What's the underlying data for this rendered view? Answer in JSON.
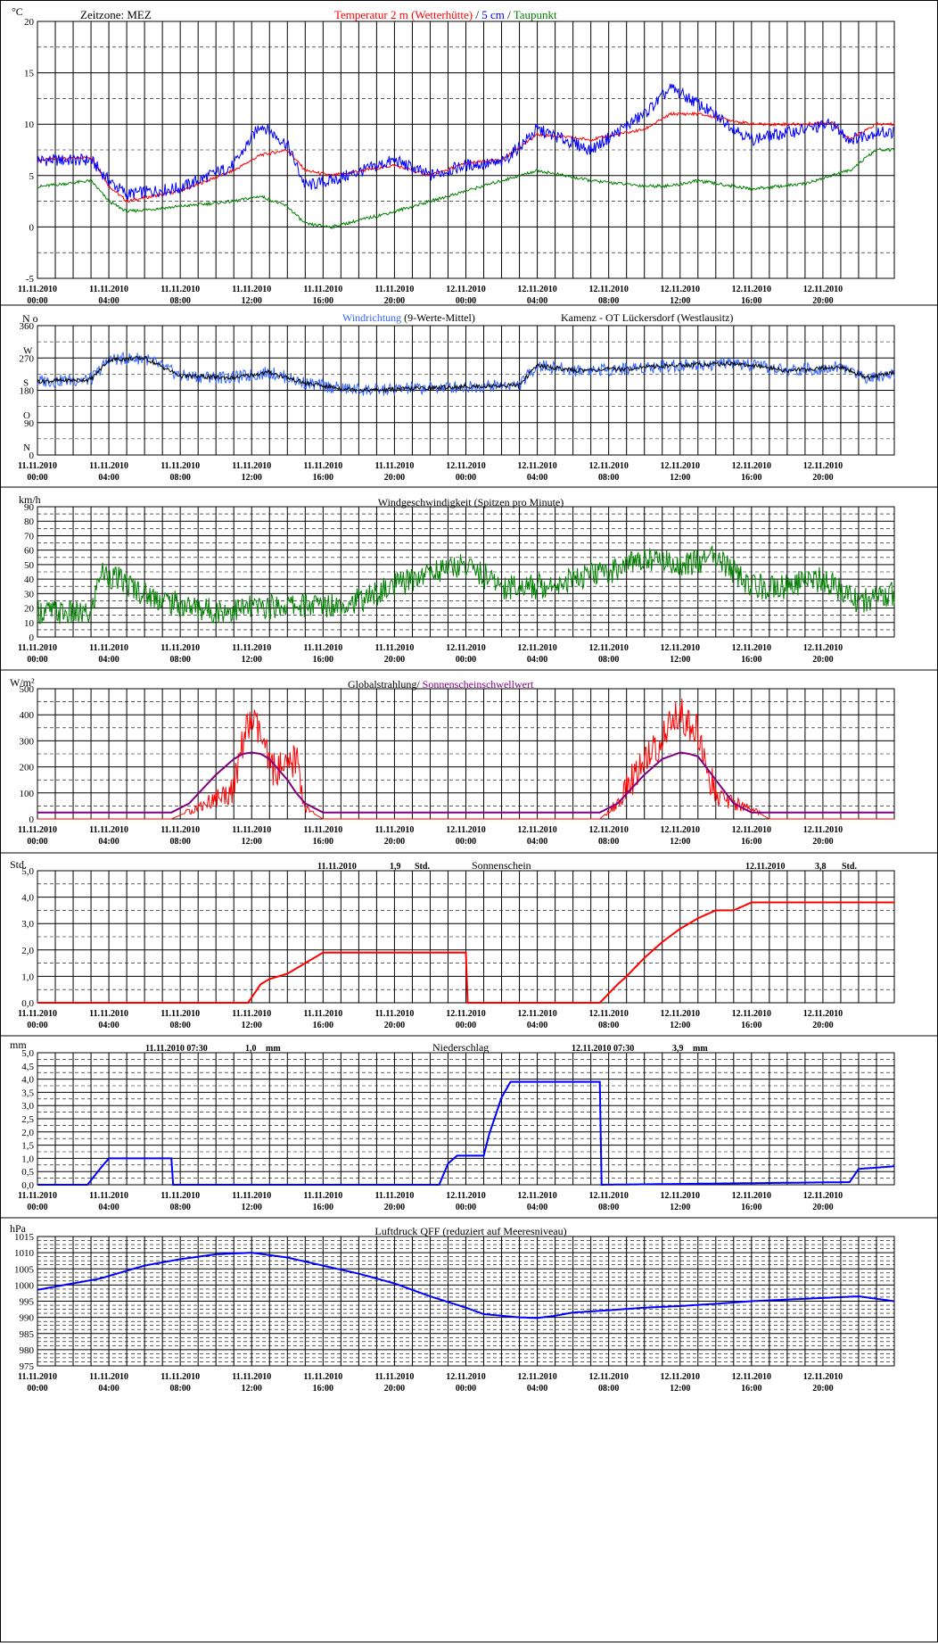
{
  "x_axis": {
    "dates": [
      "11.11.2010",
      "11.11.2010",
      "11.11.2010",
      "11.11.2010",
      "11.11.2010",
      "11.11.2010",
      "12.11.2010",
      "12.11.2010",
      "12.11.2010",
      "12.11.2010",
      "12.11.2010",
      "12.11.2010"
    ],
    "times": [
      "00:00",
      "04:00",
      "08:00",
      "12:00",
      "16:00",
      "20:00",
      "00:00",
      "04:00",
      "08:00",
      "12:00",
      "16:00",
      "20:00"
    ]
  },
  "panels": {
    "temperature": {
      "unit": "°C",
      "timezone": "Zeitzone: MEZ",
      "title_parts": [
        {
          "text": "Temperatur 2 m (Wetterhütte)",
          "color": "#ff0000"
        },
        {
          "text": "  /  ",
          "color": "#000000"
        },
        {
          "text": "5 cm",
          "color": "#0000ff"
        },
        {
          "text": " / ",
          "color": "#000000"
        },
        {
          "text": "Taupunkt",
          "color": "#008000"
        }
      ]
    },
    "winddir": {
      "unit": "N o",
      "title_parts": [
        {
          "text": "Windrichtung",
          "color": "#3366ff"
        },
        {
          "text": " (9-Werte-Mittel)",
          "color": "#000000"
        }
      ],
      "location": "Kamenz - OT Lückersdorf (Westlausitz)",
      "dir_labels": [
        "W",
        "S",
        "O",
        "N"
      ]
    },
    "windspeed": {
      "unit": "km/h",
      "title": "Windgeschwindigkeit (Spitzen pro Minute)"
    },
    "radiation": {
      "unit": "W/m²",
      "title_parts": [
        {
          "text": "Globalstrahlung/",
          "color": "#000000"
        },
        {
          "text": " Sonnenscheinschwellwert",
          "color": "#800080"
        }
      ]
    },
    "sunshine": {
      "unit": "Std.",
      "title": "Sonnenschein",
      "day1": {
        "date": "11.11.2010",
        "value": "1,9",
        "unit": "Std."
      },
      "day2": {
        "date": "12.11.2010",
        "value": "3,8",
        "unit": "Std."
      }
    },
    "precip": {
      "unit": "mm",
      "title": "Niederschlag",
      "day1": {
        "date": "11.11.2010 07:30",
        "value": "1,0",
        "unit": "mm"
      },
      "day2": {
        "date": "12.11.2010 07:30",
        "value": "3,9",
        "unit": "mm"
      }
    },
    "pressure": {
      "unit": "hPa",
      "title": "Luftdruck QFF (reduziert auf Meeresniveau)"
    }
  },
  "chart_data": [
    {
      "type": "line",
      "panel": "temperature",
      "ylim": [
        -5,
        20
      ],
      "yticks": [
        "-5",
        "0",
        "5",
        "10",
        "15",
        "20"
      ],
      "x_hours": [
        0,
        3,
        4,
        5,
        8,
        11,
        12.5,
        14,
        15,
        16.5,
        20,
        22,
        24,
        26,
        28,
        31,
        34,
        35.5,
        37,
        40,
        43,
        44.5,
        45.5,
        47
      ],
      "series": [
        {
          "name": "Temperatur 2 m (Wetterhütte)",
          "color": "#ff0000",
          "values": [
            6.5,
            6.8,
            4.0,
            2.5,
            3.5,
            5.5,
            7.0,
            7.5,
            5.5,
            5.0,
            6.0,
            5.0,
            6.2,
            6.5,
            9.0,
            8.5,
            9.5,
            11.0,
            11.0,
            10.0,
            10.0,
            10.2,
            8.5,
            10.0
          ]
        },
        {
          "name": "5 cm",
          "color": "#0000ff",
          "values": [
            6.5,
            6.5,
            4.5,
            3.2,
            3.8,
            6.0,
            10.0,
            8.0,
            4.0,
            4.5,
            6.5,
            5.0,
            6.0,
            6.2,
            9.5,
            7.5,
            11.0,
            13.5,
            12.0,
            8.5,
            9.5,
            10.0,
            8.5,
            9.2
          ]
        },
        {
          "name": "Taupunkt",
          "color": "#008000",
          "values": [
            3.9,
            4.5,
            2.5,
            1.5,
            2.0,
            2.5,
            3.0,
            2.0,
            0.3,
            0.0,
            1.5,
            2.5,
            3.5,
            4.5,
            5.5,
            4.5,
            4.0,
            4.0,
            4.5,
            3.7,
            4.2,
            5.0,
            5.5,
            7.5
          ]
        }
      ]
    },
    {
      "type": "line",
      "panel": "winddir",
      "ylim": [
        0,
        360
      ],
      "yticks": [
        "0",
        "90",
        "180",
        "270",
        "360"
      ],
      "x_hours": [
        0,
        3,
        4,
        6,
        8,
        11,
        13,
        15,
        17,
        19,
        21,
        24,
        27,
        28,
        30,
        33,
        34,
        36,
        39,
        42,
        45,
        46.5,
        48
      ],
      "series": [
        {
          "name": "Windrichtung",
          "color": "#3366ff",
          "values": [
            205,
            210,
            265,
            270,
            220,
            215,
            230,
            200,
            185,
            180,
            185,
            190,
            195,
            250,
            235,
            240,
            245,
            250,
            255,
            235,
            245,
            215,
            230
          ]
        },
        {
          "name": "9-Werte-Mittel",
          "color": "#000000",
          "values": [
            205,
            210,
            265,
            270,
            220,
            215,
            230,
            200,
            185,
            180,
            185,
            190,
            195,
            250,
            235,
            240,
            245,
            250,
            255,
            235,
            245,
            215,
            230
          ]
        }
      ]
    },
    {
      "type": "line",
      "panel": "windspeed",
      "ylim": [
        0,
        90
      ],
      "yticks": [
        "0",
        "10",
        "20",
        "30",
        "40",
        "50",
        "60",
        "70",
        "80",
        "90"
      ],
      "x_hours": [
        0,
        3,
        3.5,
        4.5,
        6,
        8,
        10,
        12,
        14,
        16,
        18,
        20,
        22,
        24,
        26,
        28,
        30,
        32,
        34,
        36,
        38,
        40,
        42,
        44,
        46,
        48
      ],
      "series": [
        {
          "name": "Windgeschwindigkeit",
          "color": "#008000",
          "values": [
            18,
            15,
            45,
            40,
            30,
            22,
            18,
            20,
            22,
            22,
            25,
            35,
            45,
            50,
            35,
            35,
            40,
            45,
            55,
            50,
            55,
            35,
            35,
            40,
            25,
            30
          ]
        }
      ]
    },
    {
      "type": "line",
      "panel": "radiation",
      "ylim": [
        0,
        500
      ],
      "yticks": [
        "0",
        "100",
        "200",
        "300",
        "400",
        "500"
      ],
      "x_hours": [
        0,
        7.5,
        8.5,
        10,
        11,
        11.5,
        12,
        12.5,
        13,
        14,
        14.5,
        15,
        16,
        24,
        31.5,
        32.5,
        34,
        35,
        36,
        36.5,
        37,
        38,
        39,
        40,
        41,
        48
      ],
      "series": [
        {
          "name": "Globalstrahlung",
          "color": "#ff0000",
          "values": [
            0,
            0,
            30,
            80,
            110,
            300,
            380,
            320,
            200,
            180,
            240,
            40,
            0,
            0,
            0,
            60,
            230,
            300,
            420,
            360,
            330,
            90,
            60,
            40,
            0,
            0
          ]
        },
        {
          "name": "Sonnenscheinschwellwert",
          "color": "#800080",
          "values": [
            25,
            25,
            60,
            170,
            230,
            250,
            255,
            250,
            230,
            150,
            100,
            60,
            25,
            25,
            25,
            60,
            170,
            230,
            255,
            250,
            240,
            150,
            60,
            25,
            25,
            25
          ]
        }
      ]
    },
    {
      "type": "line",
      "panel": "sunshine",
      "ylim": [
        0,
        5
      ],
      "yticks": [
        "0,0",
        "1,0",
        "2,0",
        "3,0",
        "4,0",
        "5,0"
      ],
      "x_hours": [
        0,
        11.8,
        12.5,
        13,
        14,
        15,
        15.5,
        16,
        24,
        24.01,
        31.5,
        32.5,
        33,
        34,
        35,
        36,
        37,
        38,
        39,
        40,
        48
      ],
      "series": [
        {
          "name": "Sonnenschein",
          "color": "#ff0000",
          "values": [
            0,
            0,
            0.7,
            0.9,
            1.1,
            1.5,
            1.7,
            1.9,
            1.9,
            0,
            0,
            0.7,
            1.0,
            1.7,
            2.3,
            2.8,
            3.2,
            3.5,
            3.5,
            3.8,
            3.8
          ]
        }
      ]
    },
    {
      "type": "line",
      "panel": "precip",
      "ylim": [
        0,
        5
      ],
      "yticks": [
        "0,0",
        "0,5",
        "1,0",
        "1,5",
        "2,0",
        "2,5",
        "3,0",
        "3,5",
        "4,0",
        "4,5",
        "5,0"
      ],
      "x_hours": [
        0,
        2.8,
        3.5,
        4,
        7.5,
        7.51,
        22.5,
        23,
        23.5,
        25,
        25.3,
        26,
        26.5,
        31.5,
        31.51,
        45.5,
        46,
        48
      ],
      "series": [
        {
          "name": "Niederschlag",
          "color": "#0000ff",
          "values": [
            0,
            0,
            0.6,
            1.0,
            1.0,
            0,
            0,
            0.8,
            1.1,
            1.1,
            1.9,
            3.3,
            3.9,
            3.9,
            0,
            0.1,
            0.6,
            0.7
          ]
        }
      ]
    },
    {
      "type": "line",
      "panel": "pressure",
      "ylim": [
        975,
        1015
      ],
      "yticks": [
        "975",
        "980",
        "985",
        "990",
        "995",
        "1000",
        "1005",
        "1010",
        "1015"
      ],
      "x_hours": [
        0,
        3.5,
        6,
        8,
        10,
        12,
        14,
        16,
        18,
        20,
        22,
        24,
        25,
        26,
        27,
        28,
        29,
        30,
        32,
        34,
        36,
        38,
        40,
        42,
        44,
        46,
        48
      ],
      "series": [
        {
          "name": "Luftdruck QFF",
          "color": "#0000ff",
          "values": [
            998.5,
            1002,
            1006,
            1008,
            1009.5,
            1010,
            1008.5,
            1006,
            1003.5,
            1000.5,
            996.5,
            993,
            991,
            990.5,
            990,
            989.8,
            990.5,
            991.5,
            992.2,
            993,
            993.5,
            994.2,
            995,
            995.5,
            996,
            996.5,
            995
          ]
        }
      ]
    }
  ]
}
